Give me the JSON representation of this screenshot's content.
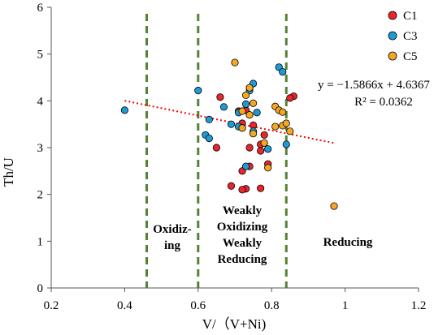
{
  "chart_data": {
    "type": "scatter",
    "xlabel": "V/（V+Ni)",
    "ylabel": "Th/U",
    "xlim": [
      0.2,
      1.2
    ],
    "ylim": [
      0,
      6
    ],
    "x_ticks": [
      "0.2",
      "0.4",
      "0.6",
      "0.8",
      "1",
      "1.2"
    ],
    "y_ticks": [
      "0",
      "1",
      "2",
      "3",
      "4",
      "5",
      "6"
    ],
    "legend_position": "top-right",
    "series": [
      {
        "name": "C1",
        "color": "#e8262b",
        "points": [
          [
            0.66,
            4.08
          ],
          [
            0.71,
            3.78
          ],
          [
            0.72,
            3.52
          ],
          [
            0.74,
            3.0
          ],
          [
            0.65,
            3.0
          ],
          [
            0.77,
            3.07
          ],
          [
            0.77,
            2.93
          ],
          [
            0.78,
            3.27
          ],
          [
            0.72,
            2.5
          ],
          [
            0.74,
            2.6
          ],
          [
            0.79,
            2.65
          ],
          [
            0.69,
            2.18
          ],
          [
            0.73,
            2.12
          ],
          [
            0.72,
            2.1
          ],
          [
            0.77,
            2.13
          ],
          [
            0.86,
            4.1
          ],
          [
            0.85,
            4.06
          ],
          [
            0.73,
            3.8
          ],
          [
            0.75,
            3.48
          ]
        ]
      },
      {
        "name": "C3",
        "color": "#1e9bd7",
        "points": [
          [
            0.4,
            3.8
          ],
          [
            0.6,
            4.22
          ],
          [
            0.62,
            3.27
          ],
          [
            0.63,
            3.2
          ],
          [
            0.63,
            3.6
          ],
          [
            0.67,
            3.87
          ],
          [
            0.69,
            3.5
          ],
          [
            0.71,
            3.45
          ],
          [
            0.72,
            3.42
          ],
          [
            0.73,
            3.93
          ],
          [
            0.74,
            4.22
          ],
          [
            0.75,
            4.37
          ],
          [
            0.76,
            3.75
          ],
          [
            0.82,
            4.72
          ],
          [
            0.83,
            4.62
          ],
          [
            0.75,
            3.35
          ],
          [
            0.79,
            2.97
          ],
          [
            0.73,
            2.6
          ],
          [
            0.84,
            3.07
          ],
          [
            0.71,
            3.75
          ]
        ]
      },
      {
        "name": "C5",
        "color": "#f5a623",
        "points": [
          [
            0.7,
            4.82
          ],
          [
            0.74,
            4.28
          ],
          [
            0.73,
            4.12
          ],
          [
            0.75,
            3.95
          ],
          [
            0.72,
            3.78
          ],
          [
            0.74,
            3.7
          ],
          [
            0.81,
            3.88
          ],
          [
            0.82,
            3.8
          ],
          [
            0.83,
            3.76
          ],
          [
            0.81,
            3.45
          ],
          [
            0.83,
            3.47
          ],
          [
            0.84,
            3.52
          ],
          [
            0.85,
            3.35
          ],
          [
            0.78,
            3.1
          ],
          [
            0.79,
            2.57
          ],
          [
            0.97,
            1.75
          ],
          [
            0.75,
            3.3
          ],
          [
            0.72,
            3.42
          ]
        ]
      }
    ],
    "trendline": {
      "equation": "y = −1.5866x + 4.6367",
      "r2_text": "R² = 0.0362",
      "slope": -1.5866,
      "intercept": 4.6367,
      "x_range": [
        0.4,
        0.97
      ],
      "color": "#ff0000"
    },
    "boundaries": [
      0.46,
      0.6,
      0.84
    ],
    "zones": [
      {
        "lines": [
          "Oxidiz-",
          "ing"
        ]
      },
      {
        "lines": [
          "Weakly",
          "Oxidizing",
          "Weakly",
          "Reducing"
        ]
      },
      {
        "lines": [
          "Reducing"
        ]
      }
    ]
  }
}
